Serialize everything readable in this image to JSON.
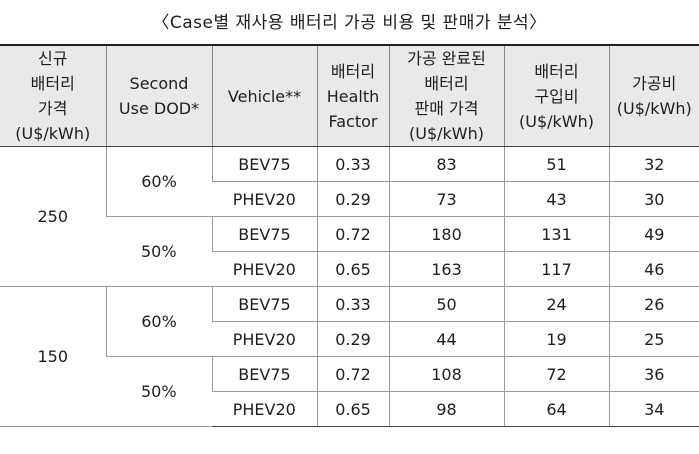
{
  "title": "〈Case별 재사용 배터리 가공 비용 및 판매가 분석〉",
  "headers": {
    "new_battery_price": [
      "신규",
      "배터리",
      "가격",
      "(U$/kWh)"
    ],
    "second_use_dod": [
      "Second",
      "Use DOD*"
    ],
    "vehicle": [
      "Vehicle**"
    ],
    "health_factor": [
      "배터리",
      "Health",
      "Factor"
    ],
    "sale_price": [
      "가공 완료된",
      "배터리",
      "판매 가격",
      "(U$/kWh)"
    ],
    "purchase_cost": [
      "배터리",
      "구입비",
      "(U$/kWh)"
    ],
    "processing_cost": [
      "가공비",
      "(U$/kWh)"
    ]
  },
  "groups": [
    {
      "price": "250",
      "dods": [
        {
          "dod": "60%",
          "rows": [
            {
              "vehicle": "BEV75",
              "health": "0.33",
              "sale": "83",
              "purchase": "51",
              "processing": "32"
            },
            {
              "vehicle": "PHEV20",
              "health": "0.29",
              "sale": "73",
              "purchase": "43",
              "processing": "30"
            }
          ]
        },
        {
          "dod": "50%",
          "rows": [
            {
              "vehicle": "BEV75",
              "health": "0.72",
              "sale": "180",
              "purchase": "131",
              "processing": "49"
            },
            {
              "vehicle": "PHEV20",
              "health": "0.65",
              "sale": "163",
              "purchase": "117",
              "processing": "46"
            }
          ]
        }
      ]
    },
    {
      "price": "150",
      "dods": [
        {
          "dod": "60%",
          "rows": [
            {
              "vehicle": "BEV75",
              "health": "0.33",
              "sale": "50",
              "purchase": "24",
              "processing": "26"
            },
            {
              "vehicle": "PHEV20",
              "health": "0.29",
              "sale": "44",
              "purchase": "19",
              "processing": "25"
            }
          ]
        },
        {
          "dod": "50%",
          "rows": [
            {
              "vehicle": "BEV75",
              "health": "0.72",
              "sale": "108",
              "purchase": "72",
              "processing": "36"
            },
            {
              "vehicle": "PHEV20",
              "health": "0.65",
              "sale": "98",
              "purchase": "64",
              "processing": "34"
            }
          ]
        }
      ]
    }
  ]
}
